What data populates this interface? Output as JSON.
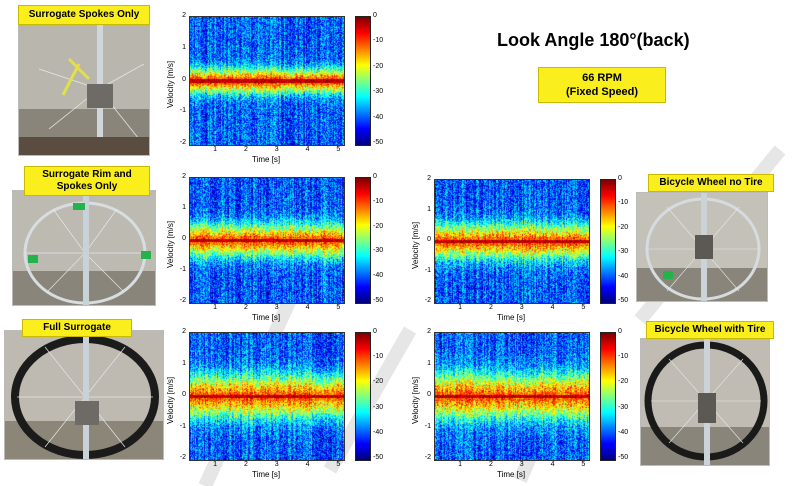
{
  "title": "Look Angle 180°(back)",
  "speed": {
    "line1": "66 RPM",
    "line2": "(Fixed Speed)"
  },
  "panels": [
    {
      "label": "Surrogate Spokes Only",
      "ylabel": "Velocity [m/s]",
      "xlabel": "Time [s]"
    },
    {
      "label": "Surrogate Rim and Spokes Only",
      "ylabel": "Velocity [m/s]",
      "xlabel": "Time [s]"
    },
    {
      "label": "Full Surrogate",
      "ylabel": "Velocity [m/s]",
      "xlabel": "Time [s]"
    },
    {
      "label": "Bicycle Wheel no Tire",
      "ylabel": "Velocity [m/s]",
      "xlabel": "Time [s]"
    },
    {
      "label": "Bicycle Wheel with Tire",
      "ylabel": "Velocity [m/s]",
      "xlabel": "Time [s]"
    }
  ],
  "axes": {
    "yticks": [
      "2",
      "1",
      "0",
      "-1",
      "-2"
    ],
    "xticks": [
      "1",
      "2",
      "3",
      "4",
      "5"
    ],
    "colorbar_ticks": [
      "0",
      "-10",
      "-20",
      "-30",
      "-40",
      "-50"
    ]
  },
  "colors": {
    "label_bg": "#fbee1d",
    "label_border": "#c9b900"
  }
}
